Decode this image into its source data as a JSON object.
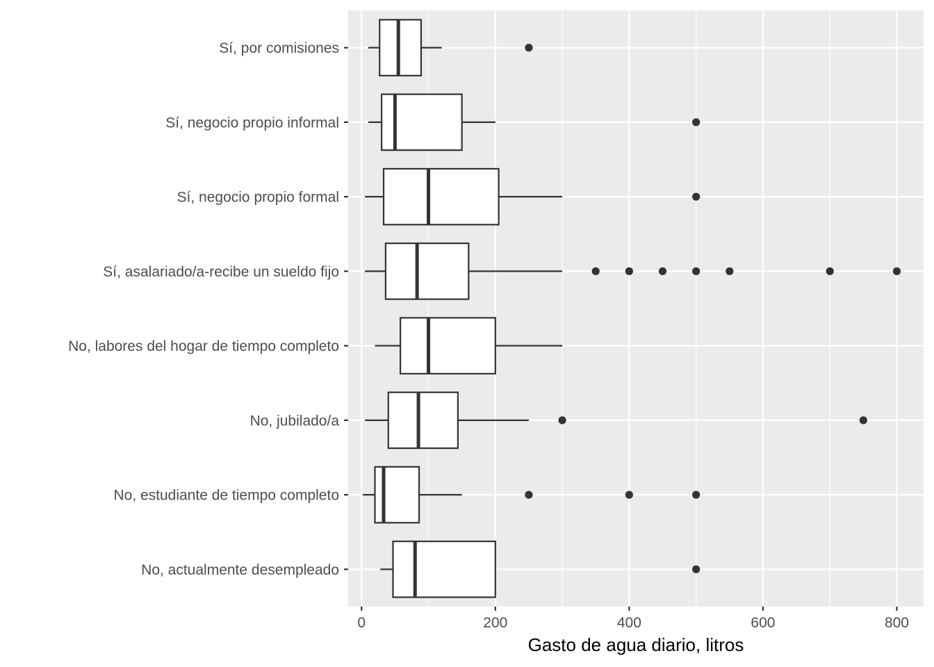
{
  "chart_data": {
    "type": "boxplot",
    "orientation": "horizontal",
    "title": "",
    "xlabel": "Gasto de agua diario, litros",
    "ylabel": "",
    "xlim": [
      -20,
      840
    ],
    "x_ticks": [
      0,
      200,
      400,
      600,
      800
    ],
    "x_tick_labels": [
      "0",
      "200",
      "400",
      "600",
      "800"
    ],
    "grid": true,
    "panel_background": "#ebebeb",
    "grid_color": "#ffffff",
    "box_fill": "#ffffff",
    "box_stroke": "#333333",
    "categories": [
      "Sí, por comisiones",
      "Sí, negocio propio informal",
      "Sí, negocio propio formal",
      "Sí, asalariado/a-recibe un sueldo fijo",
      "No, labores del hogar de tiempo completo",
      "No, jubilado/a",
      "No, estudiante de tiempo completo",
      "No, actualmente desempleado"
    ],
    "boxes": [
      {
        "category": "Sí, por comisiones",
        "whisker_low": 10,
        "q1": 27,
        "median": 55,
        "q3": 89,
        "whisker_high": 120,
        "outliers": [
          250
        ]
      },
      {
        "category": "Sí, negocio propio informal",
        "whisker_low": 10,
        "q1": 30,
        "median": 50,
        "q3": 150,
        "whisker_high": 200,
        "outliers": [
          500
        ]
      },
      {
        "category": "Sí, negocio propio formal",
        "whisker_low": 5,
        "q1": 33,
        "median": 100,
        "q3": 205,
        "whisker_high": 300,
        "outliers": [
          500
        ]
      },
      {
        "category": "Sí, asalariado/a-recibe un sueldo fijo",
        "whisker_low": 5,
        "q1": 36,
        "median": 83,
        "q3": 160,
        "whisker_high": 300,
        "outliers": [
          350,
          400,
          450,
          500,
          550,
          700,
          800
        ]
      },
      {
        "category": "No, labores del hogar de tiempo completo",
        "whisker_low": 20,
        "q1": 58,
        "median": 100,
        "q3": 200,
        "whisker_high": 300,
        "outliers": []
      },
      {
        "category": "No, jubilado/a",
        "whisker_low": 5,
        "q1": 40,
        "median": 85,
        "q3": 144,
        "whisker_high": 250,
        "outliers": [
          300,
          750
        ]
      },
      {
        "category": "No, estudiante de tiempo completo",
        "whisker_low": 2,
        "q1": 20,
        "median": 33,
        "q3": 86,
        "whisker_high": 150,
        "outliers": [
          250,
          400,
          500
        ]
      },
      {
        "category": "No, actualmente desempleado",
        "whisker_low": 28,
        "q1": 47,
        "median": 80,
        "q3": 200,
        "whisker_high": 200,
        "outliers": [
          500
        ]
      }
    ]
  }
}
